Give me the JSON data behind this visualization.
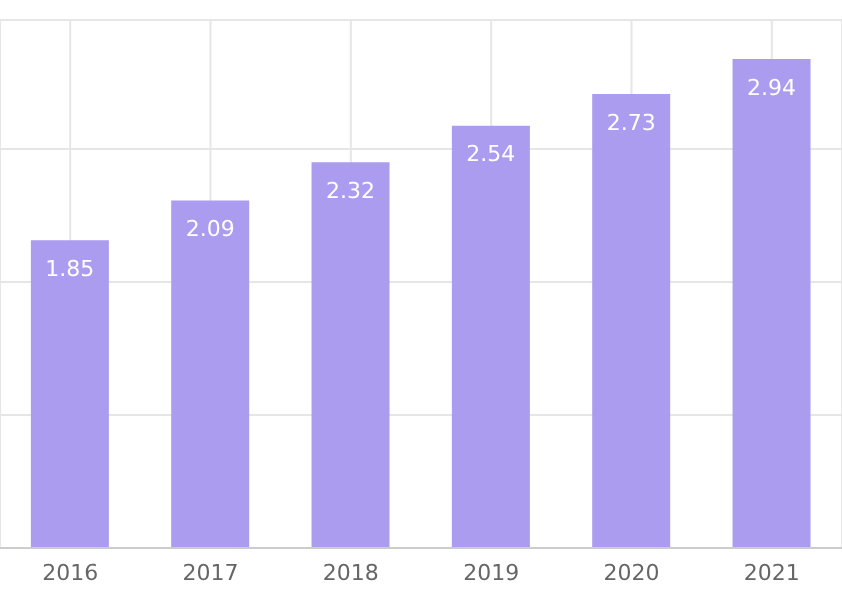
{
  "chart_data": {
    "type": "bar",
    "categories": [
      "2016",
      "2017",
      "2018",
      "2019",
      "2020",
      "2021"
    ],
    "values": [
      1.85,
      2.09,
      2.32,
      2.54,
      2.73,
      2.94
    ],
    "color": "#ab9cf0",
    "data_labels": true,
    "grid": true
  }
}
